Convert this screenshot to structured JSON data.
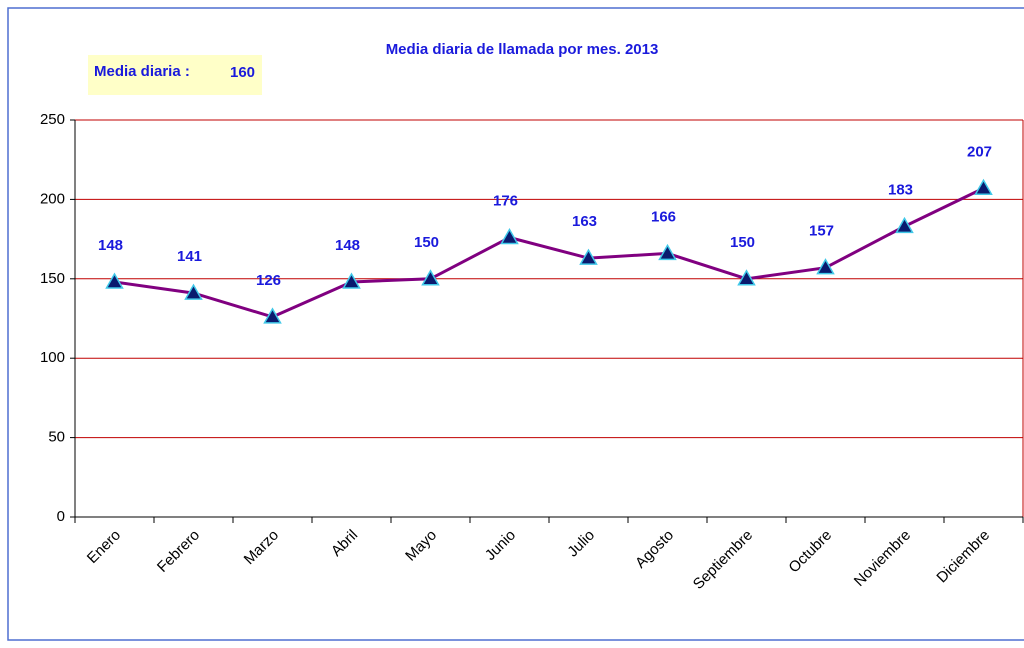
{
  "chart_data": {
    "type": "line",
    "title": "Media diaria de llamada por mes. 2013",
    "annotation": {
      "label": "Media diaria :",
      "value": 160
    },
    "categories": [
      "Enero",
      "Febrero",
      "Marzo",
      "Abril",
      "Mayo",
      "Junio",
      "Julio",
      "Agosto",
      "Septiembre",
      "Octubre",
      "Noviembre",
      "Diciembre"
    ],
    "values": [
      148,
      141,
      126,
      148,
      150,
      176,
      163,
      166,
      150,
      157,
      183,
      207
    ],
    "color": "#800080",
    "marker_color": "#0a1a6e",
    "label_color": "#1a1adc",
    "ylim": [
      0,
      250
    ],
    "yticks": [
      0,
      50,
      100,
      150,
      200,
      250
    ],
    "grid": true
  }
}
